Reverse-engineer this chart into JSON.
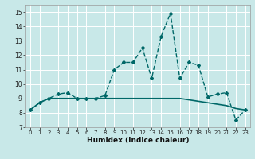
{
  "title": "",
  "xlabel": "Humidex (Indice chaleur)",
  "xlim": [
    -0.5,
    23.5
  ],
  "ylim": [
    7,
    15.5
  ],
  "yticks": [
    7,
    8,
    9,
    10,
    11,
    12,
    13,
    14,
    15
  ],
  "xticks": [
    0,
    1,
    2,
    3,
    4,
    5,
    6,
    7,
    8,
    9,
    10,
    11,
    12,
    13,
    14,
    15,
    16,
    17,
    18,
    19,
    20,
    21,
    22,
    23
  ],
  "bg_color": "#c8e8e8",
  "plot_bg_color": "#c8e8e8",
  "grid_color": "#ffffff",
  "line_color": "#006868",
  "line1_x": [
    0,
    1,
    2,
    3,
    4,
    5,
    6,
    7,
    8,
    9,
    10,
    11,
    12,
    13,
    14,
    15,
    16,
    17,
    18,
    19,
    20,
    21,
    22,
    23
  ],
  "line1_y": [
    8.2,
    8.7,
    9.0,
    9.3,
    9.4,
    9.0,
    9.0,
    9.0,
    9.2,
    11.0,
    11.5,
    11.5,
    12.5,
    10.4,
    13.3,
    14.9,
    10.4,
    11.5,
    11.3,
    9.1,
    9.3,
    9.4,
    7.5,
    8.2
  ],
  "line2_x": [
    0,
    1,
    2,
    3,
    4,
    5,
    6,
    7,
    8,
    9,
    10,
    11,
    12,
    13,
    14,
    15,
    16,
    17,
    18,
    19,
    20,
    21,
    22,
    23
  ],
  "line2_y": [
    8.2,
    8.7,
    9.0,
    9.0,
    9.0,
    9.0,
    9.0,
    9.0,
    9.0,
    9.0,
    9.0,
    9.0,
    9.0,
    9.0,
    9.0,
    9.0,
    9.0,
    8.9,
    8.8,
    8.7,
    8.6,
    8.5,
    8.3,
    8.2
  ],
  "fig_width": 3.2,
  "fig_height": 2.0,
  "dpi": 100
}
